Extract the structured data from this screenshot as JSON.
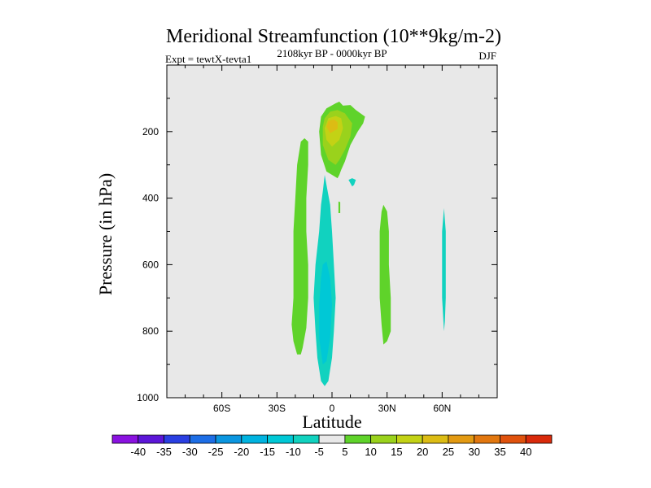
{
  "chart_data": {
    "type": "contour",
    "title": "Meridional Streamfunction (10**9kg/m-2)",
    "subtitle_left": "Expt = tewtX-tevta1",
    "subtitle_center": "2108kyr BP - 0000kyr BP",
    "subtitle_right": "DJF",
    "xlabel": "Latitude",
    "ylabel": "Pressure (in hPa)",
    "xlim": [
      -90,
      90
    ],
    "ylim": [
      1000,
      0
    ],
    "x_ticks": [
      {
        "value": -60,
        "label": "60S"
      },
      {
        "value": -30,
        "label": "30S"
      },
      {
        "value": 0,
        "label": "0"
      },
      {
        "value": 30,
        "label": "30N"
      },
      {
        "value": 60,
        "label": "60N"
      }
    ],
    "y_ticks": [
      {
        "value": 200,
        "label": "200"
      },
      {
        "value": 400,
        "label": "400"
      },
      {
        "value": 600,
        "label": "600"
      },
      {
        "value": 800,
        "label": "800"
      },
      {
        "value": 1000,
        "label": "1000"
      }
    ],
    "background_color": "#e8e8e8",
    "regions": [
      {
        "name": "upper-positive-cell",
        "level": 5,
        "color": "#5fd32a",
        "points": [
          [
            3,
            340
          ],
          [
            -3,
            320
          ],
          [
            -6,
            270
          ],
          [
            -7,
            200
          ],
          [
            -6,
            155
          ],
          [
            -3,
            130
          ],
          [
            2,
            115
          ],
          [
            4,
            110
          ],
          [
            6,
            122
          ],
          [
            10,
            120
          ],
          [
            13,
            135
          ],
          [
            18,
            155
          ],
          [
            17,
            175
          ],
          [
            14,
            200
          ],
          [
            10,
            240
          ],
          [
            7,
            290
          ],
          [
            5,
            315
          ],
          [
            4,
            330
          ]
        ]
      },
      {
        "name": "upper-positive-core-10",
        "level": 10,
        "color": "#9ad21c",
        "points": [
          [
            2,
            300
          ],
          [
            -2,
            285
          ],
          [
            -5,
            240
          ],
          [
            -5,
            185
          ],
          [
            -4,
            160
          ],
          [
            -1,
            140
          ],
          [
            3,
            135
          ],
          [
            7,
            145
          ],
          [
            11,
            175
          ],
          [
            10,
            215
          ],
          [
            7,
            255
          ],
          [
            4,
            285
          ]
        ]
      },
      {
        "name": "upper-positive-core-15",
        "level": 15,
        "color": "#c3d215",
        "points": [
          [
            0,
            245
          ],
          [
            -3,
            225
          ],
          [
            -4,
            190
          ],
          [
            -2,
            160
          ],
          [
            2,
            153
          ],
          [
            5,
            160
          ],
          [
            6,
            190
          ],
          [
            4,
            225
          ]
        ]
      },
      {
        "name": "upper-positive-core-20",
        "level": 20,
        "color": "#dcbc14",
        "points": [
          [
            -1,
            205
          ],
          [
            -3,
            185
          ],
          [
            -2,
            168
          ],
          [
            1,
            163
          ],
          [
            3,
            172
          ],
          [
            3,
            192
          ]
        ]
      },
      {
        "name": "sh-positive-column",
        "level": 5,
        "color": "#5fd32a",
        "points": [
          [
            -19,
            870
          ],
          [
            -21,
            830
          ],
          [
            -22,
            780
          ],
          [
            -21,
            700
          ],
          [
            -21,
            600
          ],
          [
            -21,
            500
          ],
          [
            -20,
            400
          ],
          [
            -19,
            300
          ],
          [
            -17,
            230
          ],
          [
            -15,
            220
          ],
          [
            -13,
            230
          ],
          [
            -13,
            300
          ],
          [
            -14,
            400
          ],
          [
            -14,
            500
          ],
          [
            -13,
            600
          ],
          [
            -13,
            700
          ],
          [
            -14,
            790
          ],
          [
            -16,
            850
          ],
          [
            -17,
            870
          ]
        ]
      },
      {
        "name": "equatorial-negative-column",
        "level": -5,
        "color": "#11d2bf",
        "points": [
          [
            -6,
            950
          ],
          [
            -8,
            880
          ],
          [
            -9,
            800
          ],
          [
            -10,
            700
          ],
          [
            -9,
            600
          ],
          [
            -7,
            500
          ],
          [
            -6,
            420
          ],
          [
            -5,
            380
          ],
          [
            -4,
            330
          ],
          [
            -3,
            360
          ],
          [
            -1,
            420
          ],
          [
            0,
            500
          ],
          [
            1,
            600
          ],
          [
            2,
            700
          ],
          [
            1,
            800
          ],
          [
            0,
            880
          ],
          [
            -2,
            950
          ],
          [
            -4,
            965
          ]
        ]
      },
      {
        "name": "equatorial-negative-core",
        "level": -10,
        "color": "#00c8d6",
        "points": [
          [
            -5,
            900
          ],
          [
            -7,
            820
          ],
          [
            -7,
            720
          ],
          [
            -6,
            640
          ],
          [
            -5,
            600
          ],
          [
            -3,
            590
          ],
          [
            -1,
            640
          ],
          [
            0,
            720
          ],
          [
            -1,
            820
          ],
          [
            -3,
            890
          ]
        ]
      },
      {
        "name": "nh-positive-column",
        "level": 5,
        "color": "#5fd32a",
        "points": [
          [
            28,
            840
          ],
          [
            27,
            780
          ],
          [
            26,
            700
          ],
          [
            26,
            600
          ],
          [
            26,
            500
          ],
          [
            27,
            440
          ],
          [
            28,
            420
          ],
          [
            30,
            440
          ],
          [
            31,
            500
          ],
          [
            31,
            600
          ],
          [
            32,
            700
          ],
          [
            32,
            800
          ],
          [
            30,
            830
          ]
        ]
      },
      {
        "name": "nh-negative-sliver",
        "level": -5,
        "color": "#11d2bf",
        "points": [
          [
            61,
            800
          ],
          [
            60,
            700
          ],
          [
            60,
            600
          ],
          [
            60,
            500
          ],
          [
            61,
            430
          ],
          [
            62,
            500
          ],
          [
            62,
            600
          ],
          [
            62,
            700
          ],
          [
            61.5,
            770
          ]
        ]
      },
      {
        "name": "small-negative-blob",
        "level": -5,
        "color": "#11d2bf",
        "points": [
          [
            9,
            345
          ],
          [
            11,
            340
          ],
          [
            13,
            345
          ],
          [
            12,
            360
          ],
          [
            11,
            365
          ],
          [
            10,
            355
          ]
        ]
      },
      {
        "name": "small-positive-dot",
        "level": 5,
        "color": "#5fd32a",
        "points": [
          [
            3.5,
            410
          ],
          [
            4.5,
            412
          ],
          [
            4.5,
            445
          ],
          [
            3.5,
            445
          ]
        ]
      }
    ],
    "colorbar": {
      "levels": [
        "-40",
        "-35",
        "-30",
        "-25",
        "-20",
        "-15",
        "-10",
        "-5",
        "5",
        "10",
        "15",
        "20",
        "25",
        "30",
        "35",
        "40"
      ],
      "colors": [
        "#8a12e0",
        "#5c16d8",
        "#2a3fe2",
        "#1d6ee6",
        "#0b96e0",
        "#00b3e0",
        "#00c8d6",
        "#11d2bf",
        "#e8e8e8",
        "#5fd32a",
        "#9ad21c",
        "#c3d215",
        "#dcbc14",
        "#e39a12",
        "#e2770f",
        "#e0520d",
        "#d92a0b"
      ]
    }
  }
}
